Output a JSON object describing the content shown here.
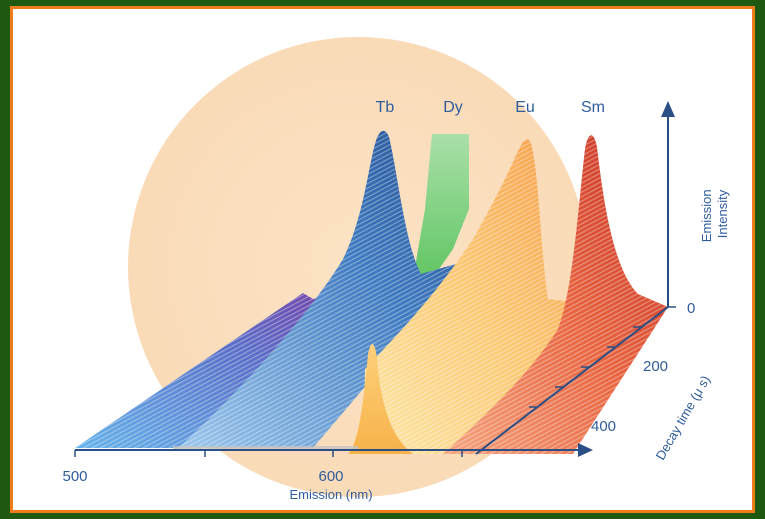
{
  "chart_data": {
    "type": "area",
    "subtype": "3d-waterfall",
    "title": "",
    "xlabel": "Emission (nm)",
    "zlabel": "Emission Intensity",
    "depth_label": "Decay time (μ s)",
    "x_ticks": [
      "500",
      "600"
    ],
    "z_ticks": [
      "0"
    ],
    "depth_ticks": [
      "200",
      "400"
    ],
    "xlim": [
      500,
      700
    ],
    "depth_lim": [
      0,
      500
    ],
    "series": [
      {
        "name": "Tb",
        "color": "#2f66a8",
        "peak_nm": 545
      },
      {
        "name": "Dy",
        "color": "#8ed48d",
        "peak_nm": 575
      },
      {
        "name": "Eu",
        "color": "#f5a65a",
        "peak_nm": 612
      },
      {
        "name": "Sm",
        "color": "#d9472f",
        "peak_nm": 645
      }
    ],
    "background_series_colors": [
      "#7b4fb1",
      "#4a8fd9",
      "#f9c66a"
    ]
  }
}
